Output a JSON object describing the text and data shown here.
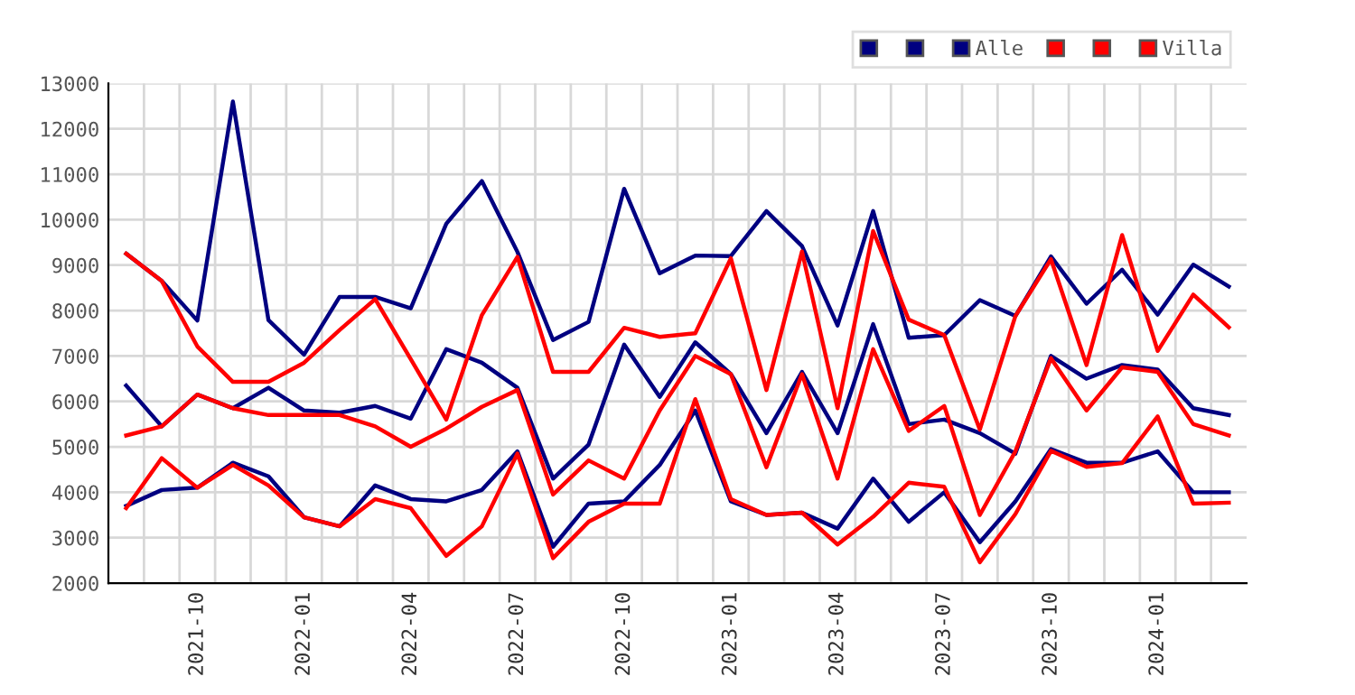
{
  "chart_data": {
    "type": "line",
    "categories": [
      null,
      null,
      "2021-10",
      null,
      null,
      "2022-01",
      null,
      null,
      "2022-04",
      null,
      null,
      "2022-07",
      null,
      null,
      "2022-10",
      null,
      null,
      "2023-01",
      null,
      null,
      "2023-04",
      null,
      null,
      "2023-07",
      null,
      null,
      "2023-10",
      null,
      null,
      "2024-01",
      null,
      null
    ],
    "series": [
      {
        "color": "#000080",
        "values": [
          9250,
          8650,
          7780,
          12600,
          7790,
          7030,
          8300,
          8300,
          8050,
          9910,
          10850,
          9290,
          7350,
          7750,
          10680,
          8820,
          9210,
          9200,
          10190,
          9420,
          7670,
          10190,
          7400,
          7460,
          8230,
          7880,
          9190,
          8150,
          8900,
          7910,
          9010,
          8530
        ]
      },
      {
        "color": "#000080",
        "values": [
          6350,
          5450,
          6150,
          5850,
          6300,
          5800,
          5750,
          5900,
          5620,
          7150,
          6850,
          6300,
          4300,
          5050,
          7250,
          6100,
          7300,
          6600,
          5300,
          6650,
          5300,
          7700,
          5500,
          5600,
          5300,
          4850,
          7000,
          6500,
          6800,
          6700,
          5850,
          5700
        ]
      },
      {
        "name": "Alle",
        "color": "#000080",
        "values": [
          3700,
          4050,
          4100,
          4650,
          4350,
          3450,
          3250,
          4150,
          3850,
          3800,
          4050,
          4900,
          2800,
          3750,
          3800,
          4600,
          5800,
          3800,
          3500,
          3550,
          3200,
          4300,
          3350,
          4000,
          2900,
          3800,
          4950,
          4650,
          4650,
          4900,
          4000,
          4000
        ]
      },
      {
        "color": "#ff0000",
        "values": [
          9250,
          8650,
          7210,
          6430,
          6430,
          6850,
          7570,
          8250,
          6930,
          5600,
          7900,
          9180,
          6650,
          6650,
          7620,
          7420,
          7500,
          9150,
          6250,
          9300,
          5850,
          9750,
          7800,
          7460,
          5380,
          7880,
          9130,
          6800,
          9660,
          7110,
          8350,
          7630
        ]
      },
      {
        "color": "#ff0000",
        "values": [
          5250,
          5450,
          6150,
          5850,
          5700,
          5700,
          5700,
          5450,
          5000,
          5400,
          5880,
          6250,
          3950,
          4700,
          4300,
          5800,
          7000,
          6600,
          4550,
          6600,
          4300,
          7150,
          5350,
          5900,
          3500,
          4900,
          6950,
          5800,
          6750,
          6650,
          5500,
          5250
        ]
      },
      {
        "name": "Villa",
        "color": "#ff0000",
        "values": [
          3650,
          4750,
          4100,
          4600,
          4150,
          3450,
          3250,
          3850,
          3650,
          2600,
          3250,
          4850,
          2550,
          3350,
          3750,
          3750,
          6050,
          3850,
          3500,
          3550,
          2850,
          3460,
          4210,
          4120,
          2460,
          3520,
          4910,
          4560,
          4640,
          5670,
          3750,
          3770
        ]
      }
    ],
    "ylim": [
      2000,
      13000
    ],
    "yticks": [
      2000,
      3000,
      4000,
      5000,
      6000,
      7000,
      8000,
      9000,
      10000,
      11000,
      12000,
      13000
    ],
    "grid": true,
    "legend": "top right"
  }
}
